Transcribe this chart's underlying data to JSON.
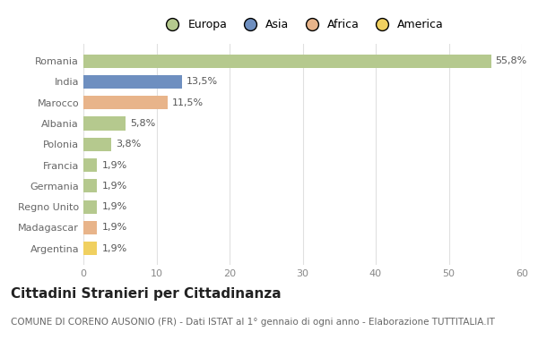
{
  "categories": [
    "Romania",
    "India",
    "Marocco",
    "Albania",
    "Polonia",
    "Francia",
    "Germania",
    "Regno Unito",
    "Madagascar",
    "Argentina"
  ],
  "values": [
    55.8,
    13.5,
    11.5,
    5.8,
    3.8,
    1.9,
    1.9,
    1.9,
    1.9,
    1.9
  ],
  "labels": [
    "55,8%",
    "13,5%",
    "11,5%",
    "5,8%",
    "3,8%",
    "1,9%",
    "1,9%",
    "1,9%",
    "1,9%",
    "1,9%"
  ],
  "colors": [
    "#b5c98e",
    "#6e8fc0",
    "#e8b48a",
    "#b5c98e",
    "#b5c98e",
    "#b5c98e",
    "#b5c98e",
    "#b5c98e",
    "#e8b48a",
    "#f0d060"
  ],
  "legend_labels": [
    "Europa",
    "Asia",
    "Africa",
    "America"
  ],
  "legend_colors": [
    "#b5c98e",
    "#6e8fc0",
    "#e8b48a",
    "#f0d060"
  ],
  "title": "Cittadini Stranieri per Cittadinanza",
  "subtitle": "COMUNE DI CORENO AUSONIO (FR) - Dati ISTAT al 1° gennaio di ogni anno - Elaborazione TUTTITALIA.IT",
  "xlim": [
    0,
    60
  ],
  "xticks": [
    0,
    10,
    20,
    30,
    40,
    50,
    60
  ],
  "background_color": "#ffffff",
  "bar_height": 0.65,
  "title_fontsize": 11,
  "subtitle_fontsize": 7.5,
  "label_fontsize": 8,
  "tick_fontsize": 8,
  "legend_fontsize": 9
}
